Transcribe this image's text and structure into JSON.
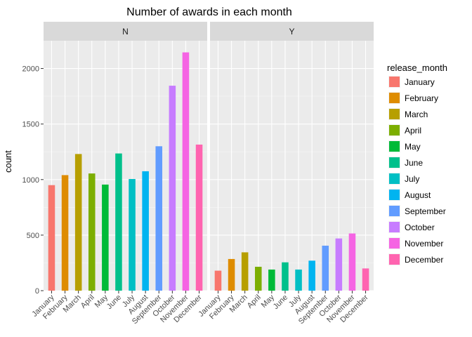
{
  "chart_data": {
    "type": "bar",
    "title": "Number of awards in each month",
    "xlabel": "",
    "ylabel": "count",
    "ylim": [
      0,
      2250
    ],
    "yticks": [
      0,
      500,
      1000,
      1500,
      2000
    ],
    "grid": true,
    "legend_position": "right",
    "legend_title": "release_month",
    "categories": [
      "January",
      "February",
      "March",
      "April",
      "May",
      "June",
      "July",
      "August",
      "September",
      "October",
      "November",
      "December"
    ],
    "colors": [
      "#F8766D",
      "#DE8C00",
      "#B79F00",
      "#7CAE00",
      "#00BA38",
      "#00C08B",
      "#00BFC4",
      "#00B4F0",
      "#619CFF",
      "#C77CFF",
      "#F564E3",
      "#FF64B0"
    ],
    "panels": [
      {
        "label": "N",
        "values": [
          950,
          1040,
          1230,
          1055,
          955,
          1235,
          1005,
          1075,
          1300,
          1845,
          2145,
          1315
        ]
      },
      {
        "label": "Y",
        "values": [
          180,
          285,
          345,
          215,
          190,
          255,
          190,
          270,
          405,
          470,
          515,
          200
        ]
      }
    ]
  }
}
